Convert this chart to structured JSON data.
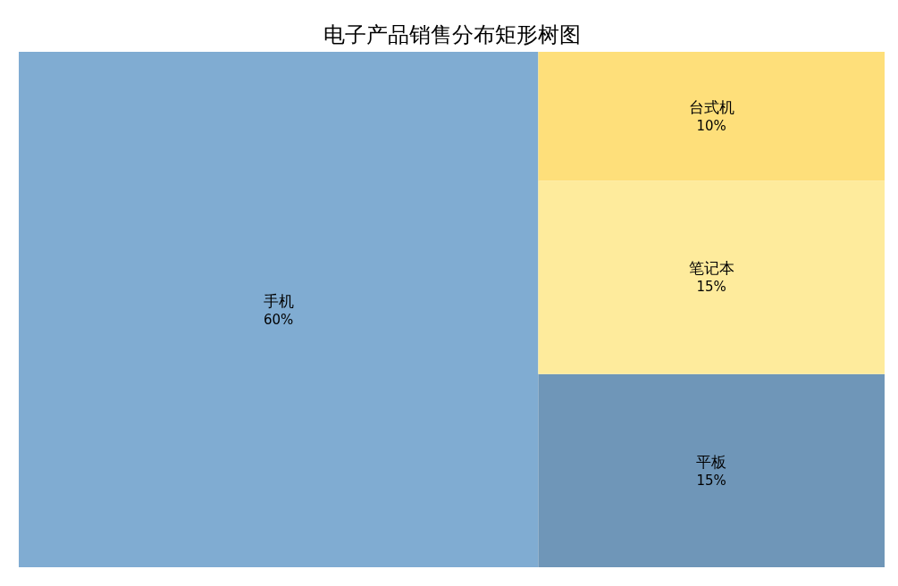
{
  "chart_data": {
    "type": "other",
    "title": "电子产品销售分布矩形树图",
    "categories": [
      "手机",
      "平板",
      "笔记本",
      "台式机"
    ],
    "values": [
      60,
      15,
      15,
      10
    ],
    "value_labels": [
      "60%",
      "15%",
      "15%",
      "10%"
    ],
    "colors": [
      "#80acd2",
      "#6f96b8",
      "#feeb9c",
      "#fedf7a"
    ]
  }
}
